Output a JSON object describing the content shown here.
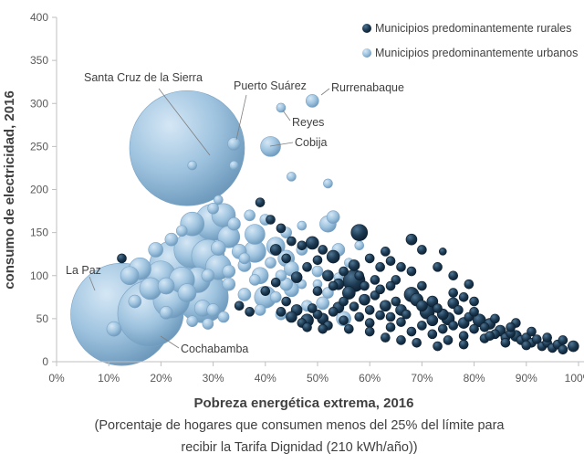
{
  "chart_data": {
    "type": "scatter",
    "title": "",
    "xlabel": "Pobreza energética extrema, 2016",
    "xnote": [
      "(Porcentaje de hogares que consumen menos del 25% del límite para",
      "recibir la Tarifa Dignidad (210 kWh/año))"
    ],
    "ylabel": "consumo de electricidad, 2016",
    "xlim": [
      0,
      100
    ],
    "ylim": [
      0,
      400
    ],
    "xticks": [
      0,
      10,
      20,
      30,
      40,
      50,
      60,
      70,
      80,
      90,
      100
    ],
    "xtick_labels": [
      "0%",
      "10%",
      "20%",
      "30%",
      "40%",
      "50%",
      "60%",
      "70%",
      "80%",
      "90%",
      "100%"
    ],
    "yticks": [
      0,
      50,
      100,
      150,
      200,
      250,
      300,
      350,
      400
    ],
    "ytick_labels": [
      "0",
      "50",
      "100",
      "150",
      "200",
      "250",
      "300",
      "350",
      "400"
    ],
    "grid": false,
    "legend_position": "top-right",
    "series": [
      {
        "name": "Municipios predominantemente rurales",
        "color": "#1d3a52",
        "points": [
          [
            12.5,
            120,
            5
          ],
          [
            39,
            185,
            5
          ],
          [
            41,
            165,
            5
          ],
          [
            43,
            155,
            5
          ],
          [
            45,
            140,
            5
          ],
          [
            47,
            135,
            5
          ],
          [
            49,
            138,
            7
          ],
          [
            51,
            130,
            5
          ],
          [
            53,
            122,
            7
          ],
          [
            55,
            105,
            5
          ],
          [
            57,
            112,
            6
          ],
          [
            58,
            150,
            9
          ],
          [
            60,
            120,
            5
          ],
          [
            62,
            110,
            5
          ],
          [
            63,
            128,
            5
          ],
          [
            64,
            117,
            5
          ],
          [
            66,
            110,
            5
          ],
          [
            68,
            142,
            6
          ],
          [
            70,
            130,
            5
          ],
          [
            74,
            128,
            4
          ],
          [
            57,
            94,
            12
          ],
          [
            56,
            80,
            7
          ],
          [
            59,
            72,
            6
          ],
          [
            61,
            77,
            5
          ],
          [
            63,
            65,
            6
          ],
          [
            65,
            70,
            5
          ],
          [
            66,
            60,
            6
          ],
          [
            67,
            55,
            5
          ],
          [
            68,
            78,
            8
          ],
          [
            69,
            72,
            7
          ],
          [
            70,
            65,
            6
          ],
          [
            71,
            58,
            8
          ],
          [
            72,
            48,
            6
          ],
          [
            73,
            62,
            5
          ],
          [
            74,
            55,
            6
          ],
          [
            75,
            50,
            7
          ],
          [
            76,
            42,
            5
          ],
          [
            77,
            60,
            5
          ],
          [
            78,
            45,
            6
          ],
          [
            79,
            52,
            5
          ],
          [
            80,
            38,
            5
          ],
          [
            81,
            48,
            7
          ],
          [
            82,
            40,
            5
          ],
          [
            83,
            44,
            6
          ],
          [
            84,
            32,
            5
          ],
          [
            85,
            36,
            6
          ],
          [
            86,
            28,
            5
          ],
          [
            87,
            33,
            5
          ],
          [
            88,
            30,
            6
          ],
          [
            89,
            25,
            5
          ],
          [
            90,
            28,
            5
          ],
          [
            91,
            22,
            5
          ],
          [
            92,
            26,
            5
          ],
          [
            93,
            18,
            5
          ],
          [
            94,
            22,
            5
          ],
          [
            95,
            16,
            5
          ],
          [
            96,
            20,
            5
          ],
          [
            97,
            14,
            5
          ],
          [
            99,
            18,
            6
          ],
          [
            60,
            45,
            5
          ],
          [
            64,
            40,
            5
          ],
          [
            68,
            35,
            5
          ],
          [
            72,
            32,
            5
          ],
          [
            75,
            25,
            5
          ],
          [
            78,
            20,
            5
          ],
          [
            62,
            54,
            5
          ],
          [
            66,
            46,
            5
          ],
          [
            70,
            42,
            5
          ],
          [
            74,
            38,
            5
          ],
          [
            78,
            30,
            5
          ],
          [
            82,
            27,
            5
          ],
          [
            86,
            22,
            5
          ],
          [
            90,
            19,
            5
          ],
          [
            35,
            65,
            5
          ],
          [
            37,
            58,
            5
          ],
          [
            40,
            82,
            5
          ],
          [
            42,
            92,
            5
          ],
          [
            44,
            70,
            5
          ],
          [
            46,
            60,
            6
          ],
          [
            48,
            48,
            7
          ],
          [
            50,
            55,
            5
          ],
          [
            52,
            42,
            5
          ],
          [
            54,
            63,
            6
          ],
          [
            56,
            38,
            5
          ],
          [
            58,
            52,
            5
          ],
          [
            60,
            60,
            5
          ],
          [
            54,
            90,
            6
          ],
          [
            52,
            100,
            6
          ],
          [
            50,
            82,
            5
          ],
          [
            48,
            110,
            5
          ],
          [
            46,
            98,
            6
          ],
          [
            44,
            120,
            5
          ],
          [
            42,
            130,
            6
          ],
          [
            50,
            118,
            5
          ],
          [
            53,
            88,
            5
          ],
          [
            55,
            70,
            5
          ],
          [
            57,
            64,
            5
          ],
          [
            59,
            88,
            5
          ],
          [
            62,
            84,
            5
          ],
          [
            64,
            52,
            5
          ],
          [
            72,
            70,
            6
          ],
          [
            76,
            68,
            6
          ],
          [
            80,
            58,
            5
          ],
          [
            84,
            50,
            5
          ],
          [
            88,
            45,
            5
          ],
          [
            43,
            58,
            5
          ],
          [
            45,
            52,
            6
          ],
          [
            47,
            45,
            5
          ],
          [
            49,
            62,
            5
          ],
          [
            51,
            50,
            6
          ],
          [
            53,
            58,
            5
          ],
          [
            55,
            48,
            5
          ],
          [
            60,
            35,
            5
          ],
          [
            63,
            28,
            5
          ],
          [
            66,
            25,
            5
          ],
          [
            69,
            22,
            5
          ],
          [
            73,
            18,
            5
          ],
          [
            68,
            105,
            5
          ],
          [
            73,
            110,
            5
          ],
          [
            76,
            100,
            5
          ],
          [
            79,
            90,
            5
          ],
          [
            48,
            40,
            5
          ],
          [
            51,
            38,
            5
          ],
          [
            65,
            95,
            5
          ],
          [
            70,
            88,
            5
          ],
          [
            58,
            100,
            5
          ],
          [
            61,
            95,
            5
          ],
          [
            64,
            88,
            5
          ],
          [
            83,
            30,
            5
          ],
          [
            87,
            40,
            5
          ],
          [
            91,
            35,
            5
          ],
          [
            94,
            28,
            5
          ],
          [
            97,
            25,
            5
          ],
          [
            76,
            80,
            5
          ],
          [
            78,
            75,
            5
          ],
          [
            80,
            70,
            5
          ]
        ]
      },
      {
        "name": "Municipios predominantemente urbanos",
        "color": "#9ec3df",
        "points": [
          [
            25,
            248,
            63
          ],
          [
            12.5,
            55,
            56
          ],
          [
            18,
            56,
            36
          ],
          [
            23,
            110,
            30
          ],
          [
            28,
            75,
            28
          ],
          [
            26,
            130,
            20
          ],
          [
            30,
            162,
            20
          ],
          [
            22,
            72,
            20
          ],
          [
            29,
            123,
            18
          ],
          [
            20,
            100,
            16
          ],
          [
            27,
            95,
            14
          ],
          [
            24,
            95,
            14
          ],
          [
            31,
            110,
            14
          ],
          [
            18,
            85,
            12
          ],
          [
            16,
            108,
            12
          ],
          [
            14,
            100,
            10
          ],
          [
            26,
            160,
            13
          ],
          [
            32,
            170,
            13
          ],
          [
            33,
            145,
            12
          ],
          [
            38,
            128,
            12
          ],
          [
            40,
            75,
            12
          ],
          [
            38,
            148,
            11
          ],
          [
            42,
            134,
            10
          ],
          [
            44,
            120,
            9
          ],
          [
            39,
            100,
            9
          ],
          [
            45,
            84,
            8
          ],
          [
            41,
            250,
            11
          ],
          [
            34,
            253,
            7
          ],
          [
            43,
            295,
            5
          ],
          [
            49,
            303,
            7
          ],
          [
            45,
            215,
            5
          ],
          [
            34,
            228,
            5
          ],
          [
            26,
            228,
            5
          ],
          [
            52,
            207,
            5
          ],
          [
            45,
            108,
            8
          ],
          [
            44,
            90,
            7
          ],
          [
            43,
            55,
            6
          ],
          [
            48,
            65,
            6
          ],
          [
            50,
            105,
            6
          ],
          [
            52,
            160,
            9
          ],
          [
            53,
            168,
            7
          ],
          [
            54,
            130,
            7
          ],
          [
            53,
            120,
            5
          ],
          [
            51,
            68,
            7
          ],
          [
            55,
            50,
            8
          ],
          [
            35,
            128,
            8
          ],
          [
            36,
            112,
            7
          ],
          [
            38,
            95,
            6
          ],
          [
            33,
            90,
            7
          ],
          [
            36,
            78,
            7
          ],
          [
            30,
            178,
            6
          ],
          [
            31,
            188,
            5
          ],
          [
            30,
            60,
            7
          ],
          [
            32,
            52,
            6
          ],
          [
            29,
            44,
            6
          ],
          [
            19,
            130,
            8
          ],
          [
            15,
            70,
            7
          ],
          [
            11,
            38,
            8
          ],
          [
            21,
            88,
            9
          ],
          [
            28,
            62,
            9
          ],
          [
            40,
            165,
            6
          ],
          [
            44,
            150,
            6
          ],
          [
            47,
            158,
            5
          ],
          [
            47,
            130,
            6
          ],
          [
            43,
            100,
            6
          ],
          [
            47,
            90,
            5
          ],
          [
            41,
            115,
            6
          ],
          [
            37,
            170,
            6
          ],
          [
            34,
            160,
            7
          ],
          [
            31,
            132,
            8
          ],
          [
            22,
            142,
            7
          ],
          [
            24,
            152,
            6
          ],
          [
            21,
            57,
            7
          ],
          [
            26,
            47,
            6
          ],
          [
            29,
            100,
            7
          ],
          [
            33,
            105,
            7
          ],
          [
            36,
            120,
            6
          ],
          [
            39,
            60,
            6
          ],
          [
            42,
            75,
            6
          ],
          [
            50,
            90,
            5
          ],
          [
            52,
            80,
            6
          ],
          [
            54,
            98,
            5
          ],
          [
            56,
            115,
            5
          ],
          [
            58,
            135,
            5
          ],
          [
            25,
            80,
            10
          ]
        ]
      }
    ],
    "annotations": [
      {
        "text": "Santa Cruz de la Sierra",
        "x": 25,
        "y": 248,
        "anchor": "start"
      },
      {
        "text": "Puerto Suárez",
        "x": 34,
        "y": 253,
        "anchor": "start"
      },
      {
        "text": "Rurrenabaque",
        "x": 49,
        "y": 303,
        "anchor": "start"
      },
      {
        "text": "Reyes",
        "x": 43,
        "y": 295,
        "anchor": "start"
      },
      {
        "text": "Cobija",
        "x": 41,
        "y": 250,
        "anchor": "start"
      },
      {
        "text": "La Paz",
        "x": 12.5,
        "y": 55,
        "anchor": "start"
      },
      {
        "text": "Cochabamba",
        "x": 18,
        "y": 56,
        "anchor": "start"
      }
    ]
  }
}
